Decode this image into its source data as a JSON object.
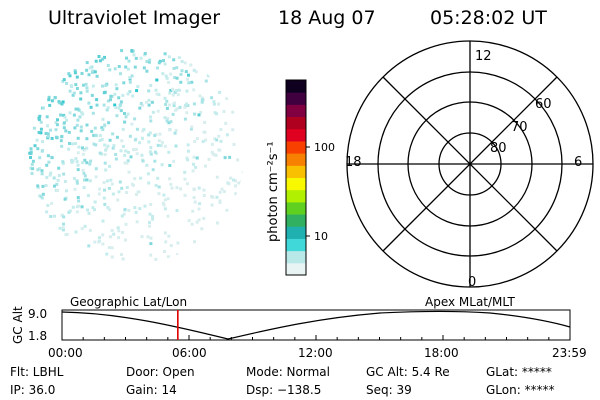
{
  "header": {
    "instrument": "Ultraviolet Imager",
    "date": "18 Aug 07",
    "time": "05:28:02 UT"
  },
  "colorbar": {
    "unit_label": "photon cm⁻²s⁻¹",
    "ticks": [
      "100",
      "10"
    ],
    "colors": [
      "#e8f4f4",
      "#b8e8e8",
      "#40d8d8",
      "#20b0b0",
      "#30b060",
      "#60d020",
      "#b0f000",
      "#f8f800",
      "#f8c000",
      "#f88000",
      "#f84000",
      "#e00020",
      "#b00020",
      "#800040",
      "#400040",
      "#100020"
    ]
  },
  "polar_plot": {
    "mlt_labels": {
      "top": "12",
      "left": "18",
      "right": "6",
      "bottom": "0"
    },
    "lat_labels": [
      "60",
      "70",
      "80"
    ]
  },
  "timeline": {
    "left_title": "Geographic Lat/Lon",
    "right_title": "Apex MLat/MLT",
    "axis_label": "GC Alt",
    "y_top": "9.0",
    "y_bottom": "1.8",
    "x_ticks": [
      "00:00",
      "06:00",
      "12:00",
      "18:00",
      "23:59"
    ],
    "current_time_fraction": 0.228
  },
  "info": {
    "row1": [
      "Flt: LBHL",
      "Door: Open",
      "Mode: Normal",
      "GC Alt: 5.4 Re",
      "GLat: *****"
    ],
    "row2": [
      "IP: 36.0",
      "Gain: 14",
      "Dsp: −138.5",
      "Seq: 39",
      "GLon: *****"
    ]
  },
  "accent_colors": {
    "marker": "#e00000",
    "dots": "#7fd8dc"
  }
}
